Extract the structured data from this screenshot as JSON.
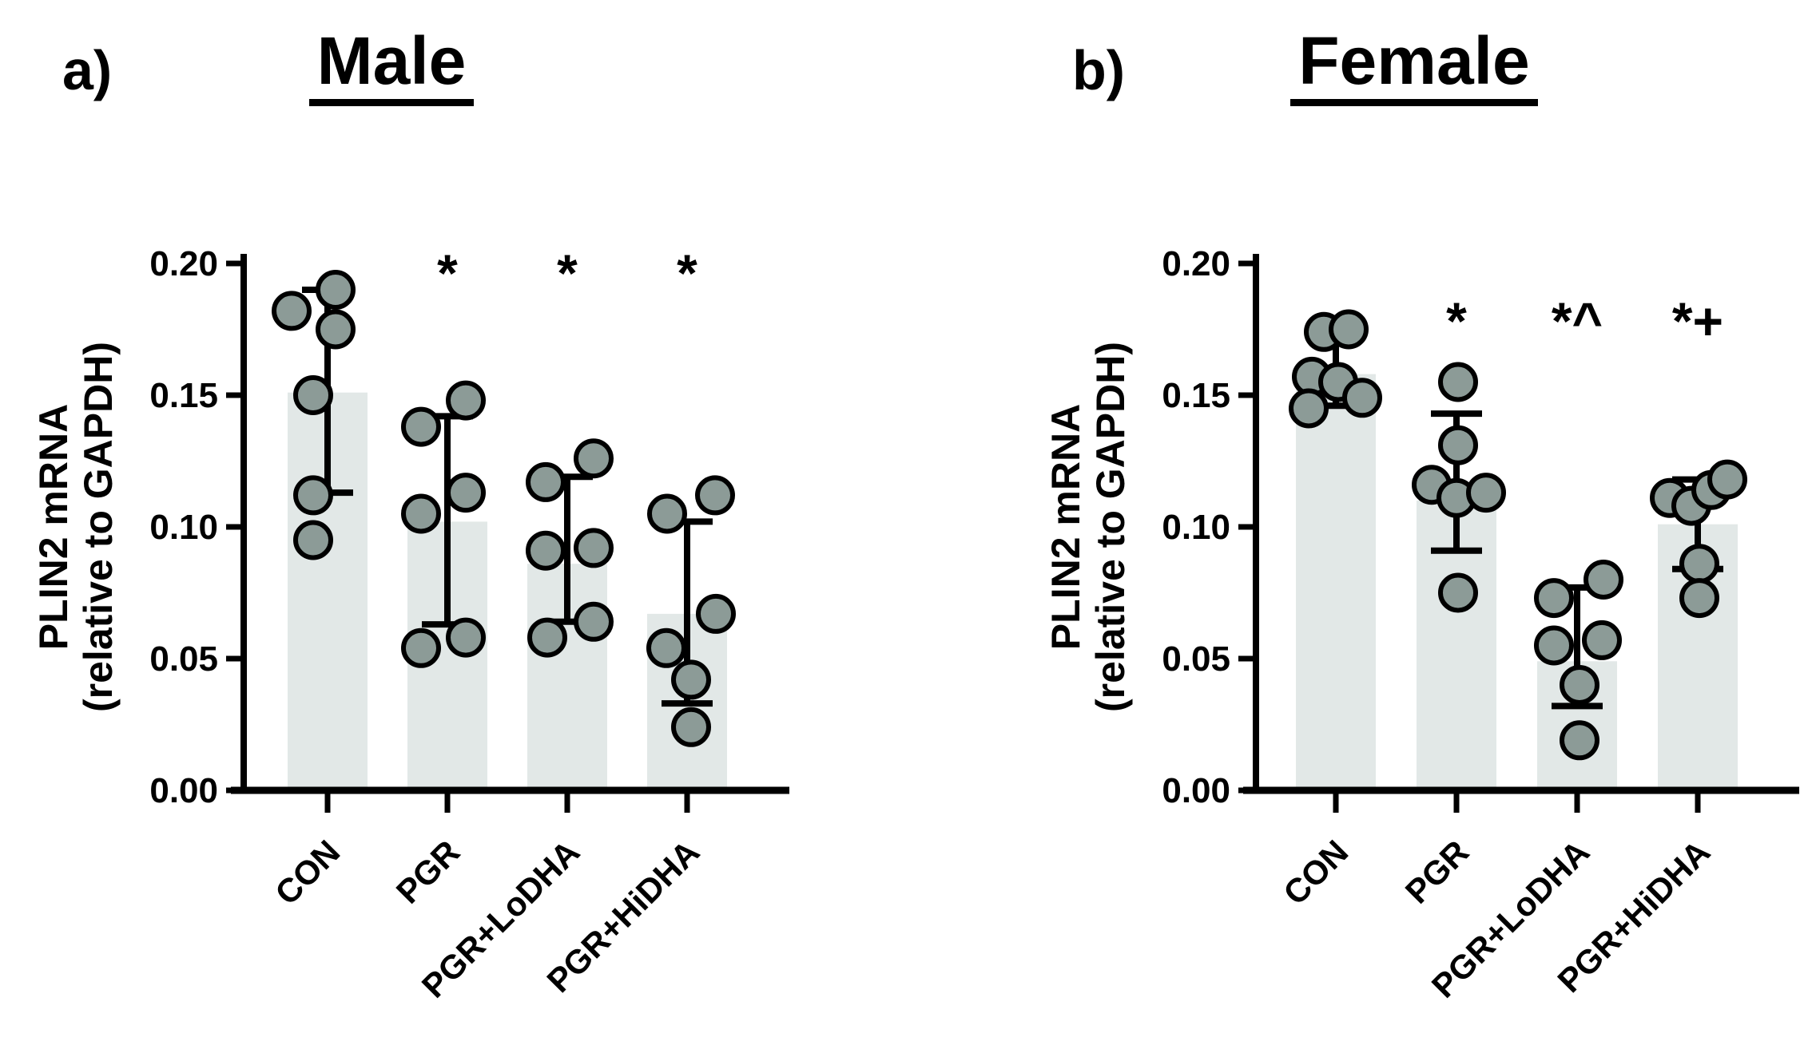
{
  "colors": {
    "bar_fill": "#E2E8E7",
    "point_fill": "#8C9B97",
    "point_stroke": "#000000",
    "ink": "#000000"
  },
  "chart_data": [
    {
      "type": "bar",
      "panel": "a)",
      "title": "Male",
      "ylabel_line1": "PLIN2 mRNA",
      "ylabel_line2": "(relative to  GAPDH)",
      "ylim": [
        0,
        0.2
      ],
      "yticks": [
        0.0,
        0.05,
        0.1,
        0.15,
        0.2
      ],
      "ytick_labels": [
        "0.00",
        "0.05",
        "0.10",
        "0.15",
        "0.20"
      ],
      "categories": [
        "CON",
        "PGR",
        "PGR+LoDHA",
        "PGR+HiDHA"
      ],
      "legend": "none",
      "grid": false,
      "groups": [
        {
          "label": "CON",
          "bar": 0.151,
          "whisker_low": 0.113,
          "whisker_high": 0.19,
          "annotation": "",
          "points": [
            {
              "dx": -45,
              "v": 0.182
            },
            {
              "dx": 10,
              "v": 0.19
            },
            {
              "dx": 10,
              "v": 0.175
            },
            {
              "dx": -18,
              "v": 0.15
            },
            {
              "dx": -18,
              "v": 0.112
            },
            {
              "dx": -18,
              "v": 0.095
            }
          ]
        },
        {
          "label": "PGR",
          "bar": 0.102,
          "whisker_low": 0.063,
          "whisker_high": 0.142,
          "annotation": "*",
          "points": [
            {
              "dx": -33,
              "v": 0.138
            },
            {
              "dx": 23,
              "v": 0.148
            },
            {
              "dx": -33,
              "v": 0.105
            },
            {
              "dx": 23,
              "v": 0.113
            },
            {
              "dx": -33,
              "v": 0.054
            },
            {
              "dx": 23,
              "v": 0.058
            }
          ]
        },
        {
          "label": "PGR+LoDHA",
          "bar": 0.086,
          "whisker_low": 0.064,
          "whisker_high": 0.119,
          "annotation": "*",
          "points": [
            {
              "dx": -27,
              "v": 0.117
            },
            {
              "dx": 33,
              "v": 0.126
            },
            {
              "dx": -27,
              "v": 0.091
            },
            {
              "dx": 33,
              "v": 0.092
            },
            {
              "dx": -25,
              "v": 0.058
            },
            {
              "dx": 33,
              "v": 0.064
            }
          ]
        },
        {
          "label": "PGR+HiDHA",
          "bar": 0.067,
          "whisker_low": 0.033,
          "whisker_high": 0.102,
          "annotation": "*",
          "points": [
            {
              "dx": -25,
              "v": 0.105
            },
            {
              "dx": 35,
              "v": 0.112
            },
            {
              "dx": 36,
              "v": 0.067
            },
            {
              "dx": -26,
              "v": 0.054
            },
            {
              "dx": 5,
              "v": 0.042
            },
            {
              "dx": 5,
              "v": 0.024
            }
          ]
        }
      ]
    },
    {
      "type": "bar",
      "panel": "b)",
      "title": "Female",
      "ylabel_line1": "PLIN2 mRNA",
      "ylabel_line2": "(relative to  GAPDH)",
      "ylim": [
        0,
        0.2
      ],
      "yticks": [
        0.0,
        0.05,
        0.1,
        0.15,
        0.2
      ],
      "ytick_labels": [
        "0.00",
        "0.05",
        "0.10",
        "0.15",
        "0.20"
      ],
      "categories": [
        "CON",
        "PGR",
        "PGR+LoDHA",
        "PGR+HiDHA"
      ],
      "legend": "none",
      "grid": false,
      "groups": [
        {
          "label": "CON",
          "bar": 0.158,
          "whisker_low": 0.146,
          "whisker_high": 0.172,
          "annotation": "",
          "points": [
            {
              "dx": -15,
              "v": 0.174
            },
            {
              "dx": 16,
              "v": 0.175
            },
            {
              "dx": -30,
              "v": 0.157
            },
            {
              "dx": 3,
              "v": 0.155
            },
            {
              "dx": 33,
              "v": 0.149
            },
            {
              "dx": -34,
              "v": 0.145
            }
          ]
        },
        {
          "label": "PGR",
          "bar": 0.11,
          "whisker_low": 0.091,
          "whisker_high": 0.143,
          "annotation": "*",
          "points": [
            {
              "dx": 2,
              "v": 0.155
            },
            {
              "dx": 2,
              "v": 0.131
            },
            {
              "dx": -31,
              "v": 0.116
            },
            {
              "dx": 0,
              "v": 0.111
            },
            {
              "dx": 37,
              "v": 0.113
            },
            {
              "dx": 2,
              "v": 0.075
            }
          ]
        },
        {
          "label": "PGR+LoDHA",
          "bar": 0.049,
          "whisker_low": 0.032,
          "whisker_high": 0.077,
          "annotation": "*^",
          "points": [
            {
              "dx": -29,
              "v": 0.073
            },
            {
              "dx": 33,
              "v": 0.08
            },
            {
              "dx": -29,
              "v": 0.055
            },
            {
              "dx": 31,
              "v": 0.057
            },
            {
              "dx": 3,
              "v": 0.04
            },
            {
              "dx": 3,
              "v": 0.019
            }
          ]
        },
        {
          "label": "PGR+HiDHA",
          "bar": 0.101,
          "whisker_low": 0.084,
          "whisker_high": 0.118,
          "annotation": "*+",
          "points": [
            {
              "dx": -35,
              "v": 0.111
            },
            {
              "dx": -8,
              "v": 0.108
            },
            {
              "dx": 17,
              "v": 0.114
            },
            {
              "dx": 37,
              "v": 0.118
            },
            {
              "dx": 2,
              "v": 0.086
            },
            {
              "dx": 2,
              "v": 0.073
            }
          ]
        }
      ]
    }
  ]
}
